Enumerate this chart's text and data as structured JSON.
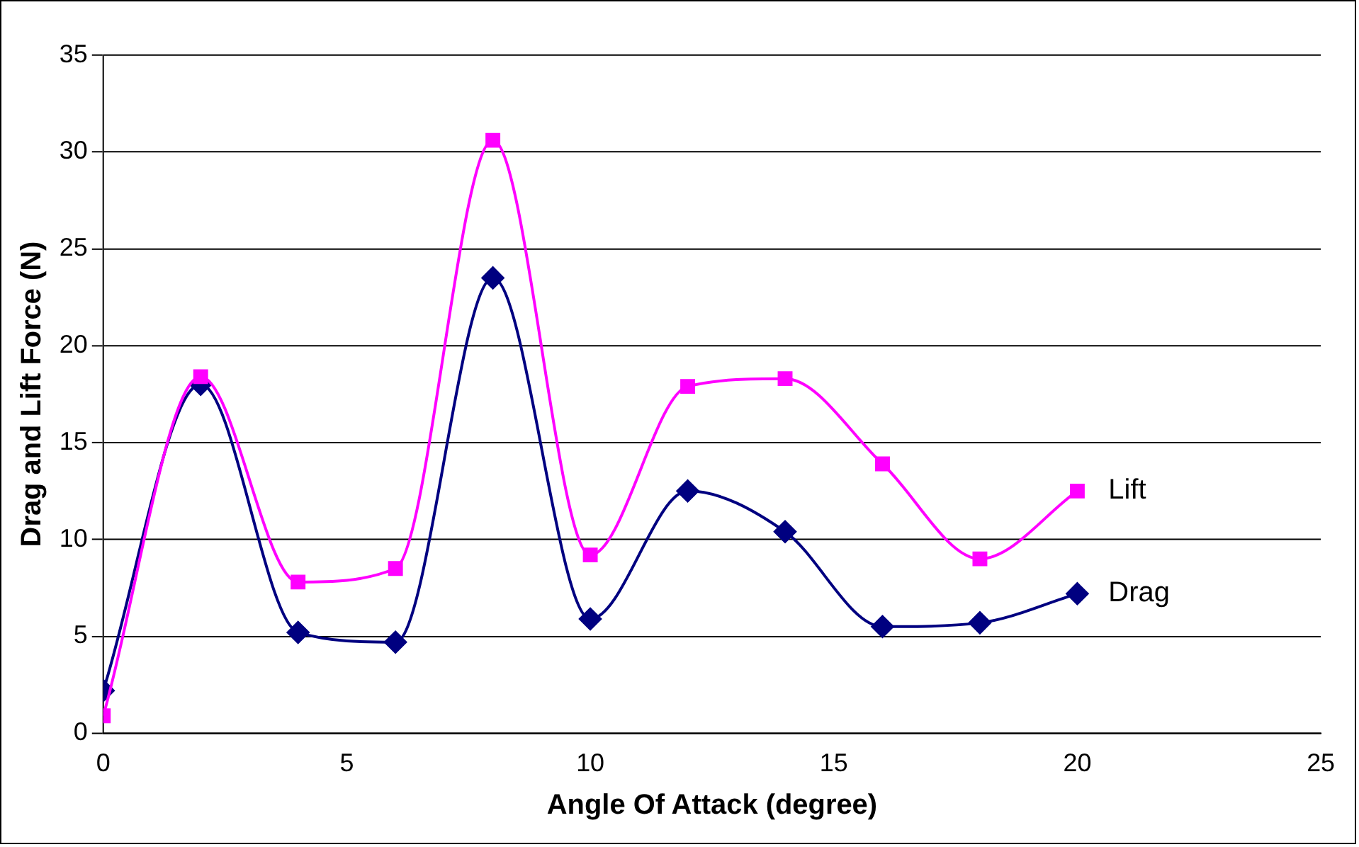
{
  "chart_data": {
    "type": "line",
    "xlabel": "Angle Of Attack (degree)",
    "ylabel": "Drag and Lift Force (N)",
    "xlim": [
      0,
      25
    ],
    "xticks": [
      0,
      5,
      10,
      15,
      20,
      25
    ],
    "ylim": [
      0,
      35
    ],
    "yticks": [
      0,
      5,
      10,
      15,
      20,
      25,
      30,
      35
    ],
    "grid": "y",
    "legend": false,
    "x": [
      0,
      2,
      4,
      6,
      8,
      10,
      12,
      14,
      16,
      18,
      20
    ],
    "series": [
      {
        "name": "Lift",
        "color": "#ff00ff",
        "marker": "square",
        "values": [
          0.9,
          18.4,
          7.8,
          8.5,
          30.6,
          9.2,
          17.9,
          18.3,
          13.9,
          9.0,
          12.5
        ]
      },
      {
        "name": "Drag",
        "color": "#000080",
        "marker": "diamond",
        "values": [
          2.2,
          18.0,
          5.2,
          4.7,
          23.5,
          5.9,
          12.5,
          10.4,
          5.5,
          5.7,
          7.2
        ]
      }
    ]
  }
}
